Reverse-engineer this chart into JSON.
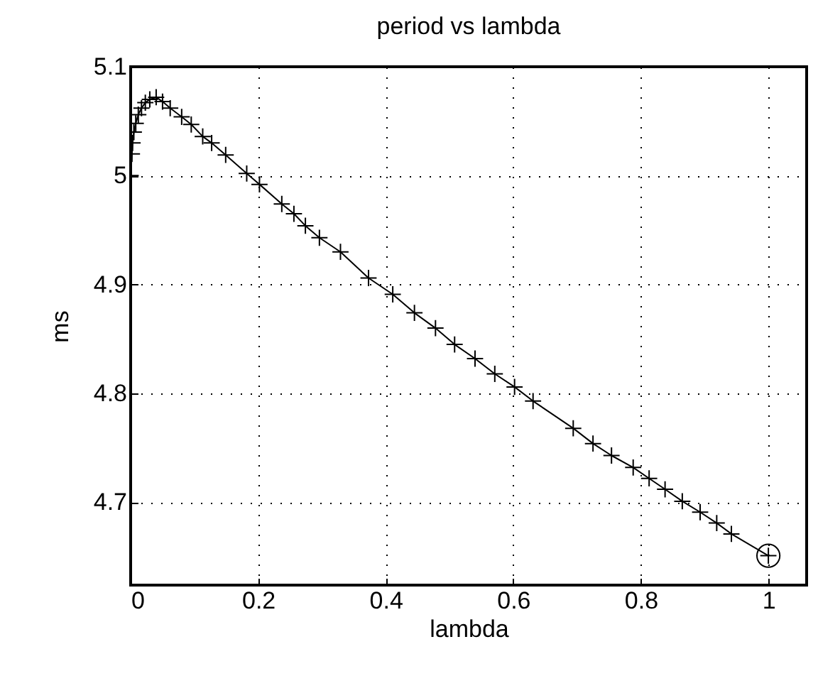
{
  "chart_data": {
    "type": "line",
    "title": "period vs lambda",
    "xlabel": "lambda",
    "ylabel": "ms",
    "xlim": [
      0,
      1.06
    ],
    "ylim": [
      4.624,
      5.1
    ],
    "xticks": [
      0,
      0.2,
      0.4,
      0.6,
      0.8,
      1
    ],
    "yticks": [
      4.7,
      4.8,
      4.9,
      5,
      5.1
    ],
    "grid": true,
    "line_style": "solid",
    "series": [
      {
        "color": "#000000",
        "marker": "cross",
        "x": [
          0,
          0.002,
          0.003,
          0.005,
          0.008,
          0.012,
          0.017,
          0.023,
          0.03,
          0.04,
          0.05,
          0.062,
          0.08,
          0.095,
          0.113,
          0.127,
          0.149,
          0.182,
          0.202,
          0.237,
          0.256,
          0.274,
          0.296,
          0.329,
          0.373,
          0.411,
          0.445,
          0.478,
          0.508,
          0.54,
          0.571,
          0.602,
          0.631,
          0.694,
          0.725,
          0.754,
          0.788,
          0.813,
          0.838,
          0.865,
          0.893,
          0.919,
          0.942,
          1
        ],
        "values": [
          5.0,
          5.02,
          5.03,
          5.04,
          5.048,
          5.056,
          5.062,
          5.067,
          5.07,
          5.072,
          5.068,
          5.062,
          5.054,
          5.047,
          5.036,
          5.03,
          5.019,
          5.002,
          4.992,
          4.974,
          4.965,
          4.954,
          4.943,
          4.93,
          4.906,
          4.891,
          4.874,
          4.86,
          4.845,
          4.832,
          4.818,
          4.806,
          4.793,
          4.768,
          4.754,
          4.743,
          4.732,
          4.722,
          4.712,
          4.701,
          4.691,
          4.681,
          4.671,
          4.651
        ]
      },
      {
        "type": "scatter",
        "color": "#000000",
        "marker": "circle",
        "x": [
          1
        ],
        "values": [
          4.651
        ]
      }
    ]
  }
}
